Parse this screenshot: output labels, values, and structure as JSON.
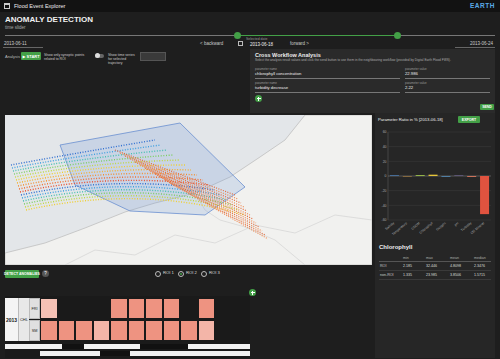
{
  "app": {
    "title": "Flood Event Explorer",
    "logo": "EARTH"
  },
  "header": {
    "title": "ANOMALY DETECTION",
    "subtitle": "time slider"
  },
  "time_slider": {
    "start": "2013-06-11",
    "end": "2013-06-24",
    "backward": "< backward",
    "forward": "forward >",
    "selected_label": "Selected date",
    "selected": "2013-06-18"
  },
  "analysis": {
    "label": "Analysis",
    "start_button": "▶ START",
    "roi_toggle": "Show only synoptic points related to ROI",
    "timeseries_toggle": "Show time series for selected trajectory"
  },
  "cross_workflow": {
    "title": "Cross Workflow Analysis",
    "description": "Select the analysis result values and click the send button to use them in the neighbouring workflow (provided by Digital Earth Flood FWS).",
    "fields": [
      {
        "name_label": "parameter name",
        "name": "chlorophyll concentration",
        "value_label": "parameter value",
        "value": "22.986"
      },
      {
        "name_label": "parameter name",
        "name": "turbidity decrease",
        "value_label": "parameter value",
        "value": "2.22"
      }
    ],
    "send_button": "SEND"
  },
  "chart_panel": {
    "export_button": "EXPORT"
  },
  "chart_data": {
    "type": "bar",
    "title": "Parameter Ratio in % [2013-06-18]",
    "categories": [
      "Salinity",
      "Temperature",
      "CDOM",
      "Chlorophyll",
      "Oxygen",
      "pH",
      "Turbidity",
      "OG Mineral"
    ],
    "values": [
      0.8,
      -0.6,
      1.2,
      1.8,
      -0.9,
      0.5,
      -1.2,
      -52
    ],
    "colors": [
      "#4f8fd6",
      "#e0a040",
      "#9fc54a",
      "#e6c53a",
      "#5aa0d8",
      "#8f7fd0",
      "#e07a5f",
      "#e0533f"
    ],
    "ylim": [
      -60,
      60
    ],
    "yticks": [
      -60,
      -40,
      -20,
      0,
      20,
      40,
      60
    ],
    "grid": true
  },
  "stats": {
    "title": "Chlorophyll",
    "columns": [
      "min",
      "max",
      "mean",
      "median"
    ],
    "rows": [
      {
        "label": "ROI",
        "values": [
          2.185,
          32.446,
          4.8098,
          2.3476
        ]
      },
      {
        "label": "non-ROI",
        "values": [
          1.335,
          23.985,
          3.8506,
          1.5715
        ]
      }
    ]
  },
  "anomaly": {
    "detect_button": "DETECT ANOMALIES",
    "help": "?",
    "roi_options": [
      "ROI 1",
      "ROI 2",
      "ROI 3"
    ],
    "selected_roi": 1,
    "year": "2013",
    "parameter": "CHL",
    "color_scale": {
      "range": [
        0,
        1
      ],
      "colors": [
        "#fbe3dc",
        "#e8705a"
      ]
    },
    "rows": [
      {
        "label": "FRI",
        "values": [
          0.3,
          0,
          0,
          0,
          0.7,
          0.7,
          0.7,
          0.7,
          0,
          0.7,
          0,
          0
        ]
      },
      {
        "label": "SM",
        "values": [
          0.7,
          0.7,
          0.7,
          0.4,
          0.7,
          0.7,
          0.7,
          0.7,
          0.7,
          0.4,
          0,
          0
        ]
      }
    ]
  }
}
